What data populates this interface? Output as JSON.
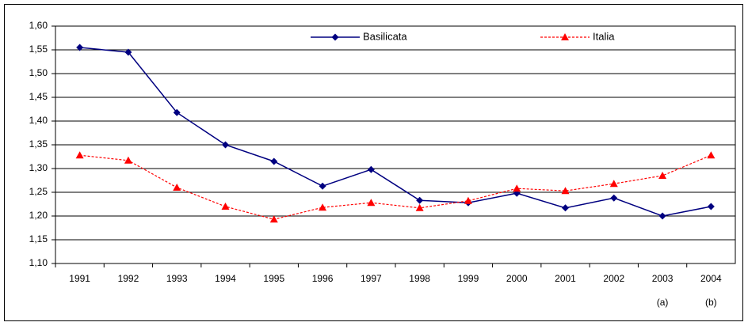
{
  "chart_data": {
    "type": "line",
    "categories": [
      "1991",
      "1992",
      "1993",
      "1994",
      "1995",
      "1996",
      "1997",
      "1998",
      "1999",
      "2000",
      "2001",
      "2002",
      "2003",
      "2004"
    ],
    "category_notes": [
      null,
      null,
      null,
      null,
      null,
      null,
      null,
      null,
      null,
      null,
      null,
      null,
      "(a)",
      "(b)"
    ],
    "series": [
      {
        "name": "Basilicata",
        "color": "#000080",
        "marker": "diamond",
        "dash": false,
        "values": [
          1.555,
          1.545,
          1.418,
          1.35,
          1.315,
          1.263,
          1.298,
          1.233,
          1.228,
          1.248,
          1.217,
          1.238,
          1.2,
          1.22
        ]
      },
      {
        "name": "Italia",
        "color": "#ff0000",
        "marker": "triangle",
        "dash": true,
        "values": [
          1.328,
          1.317,
          1.26,
          1.22,
          1.193,
          1.218,
          1.228,
          1.217,
          1.232,
          1.258,
          1.253,
          1.268,
          1.285,
          1.328
        ]
      }
    ],
    "ylim": [
      1.1,
      1.6
    ],
    "yticks": [
      {
        "value": 1.1,
        "label": "1,10"
      },
      {
        "value": 1.15,
        "label": "1,15"
      },
      {
        "value": 1.2,
        "label": "1,20"
      },
      {
        "value": 1.25,
        "label": "1,25"
      },
      {
        "value": 1.3,
        "label": "1,30"
      },
      {
        "value": 1.35,
        "label": "1,35"
      },
      {
        "value": 1.4,
        "label": "1,40"
      },
      {
        "value": 1.45,
        "label": "1,45"
      },
      {
        "value": 1.5,
        "label": "1,50"
      },
      {
        "value": 1.55,
        "label": "1,55"
      },
      {
        "value": 1.6,
        "label": "1,60"
      }
    ],
    "grid": true,
    "legend": "top"
  }
}
